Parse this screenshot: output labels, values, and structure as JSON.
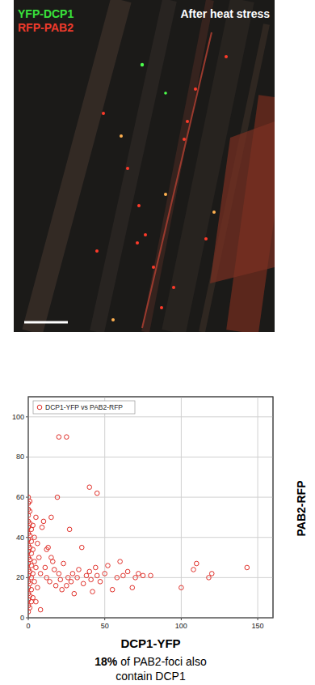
{
  "image": {
    "title": "After heat stress",
    "channels": [
      {
        "name": "YFP-DCP1",
        "color": "#39e23c"
      },
      {
        "name": "RFP-PAB2",
        "color": "#ee3b2c"
      }
    ]
  },
  "chart_data": {
    "type": "scatter",
    "x_label": "DCP1-YFP",
    "y_label": "PAB2-RFP",
    "x": [
      0,
      0,
      0,
      0,
      0,
      0,
      0,
      0,
      0,
      0,
      0,
      0,
      0,
      0,
      0,
      0,
      0,
      0,
      0,
      0,
      1,
      1,
      1,
      1,
      1,
      1,
      1,
      1,
      1,
      1,
      2,
      2,
      2,
      2,
      2,
      2,
      2,
      3,
      3,
      3,
      3,
      4,
      4,
      4,
      5,
      5,
      6,
      6,
      7,
      8,
      9,
      10,
      11,
      12,
      13,
      14,
      15,
      16,
      17,
      18,
      19,
      20,
      21,
      22,
      23,
      25,
      26,
      27,
      28,
      29,
      30,
      32,
      33,
      35,
      36,
      38,
      40,
      41,
      42,
      44,
      45,
      47,
      50,
      52,
      55,
      58,
      60,
      62,
      65,
      68,
      70,
      72,
      75,
      80,
      100,
      108,
      110,
      118,
      120,
      143,
      20,
      25,
      40,
      45,
      5,
      8,
      12,
      15
    ],
    "series": [
      {
        "name": "DCP1-YFP vs PAB2-RFP",
        "color": "#e0302a",
        "marker": "circle",
        "values": [
          3,
          6,
          9,
          12,
          15,
          18,
          21,
          24,
          27,
          30,
          33,
          36,
          39,
          42,
          45,
          48,
          51,
          54,
          57,
          60,
          5,
          11,
          17,
          23,
          29,
          35,
          41,
          47,
          53,
          58,
          8,
          14,
          20,
          26,
          32,
          38,
          44,
          10,
          22,
          34,
          46,
          18,
          28,
          40,
          25,
          50,
          15,
          37,
          30,
          22,
          45,
          48,
          25,
          20,
          35,
          18,
          50,
          28,
          24,
          16,
          60,
          22,
          19,
          14,
          27,
          16,
          20,
          44,
          18,
          22,
          12,
          20,
          24,
          35,
          17,
          21,
          23,
          19,
          13,
          25,
          21,
          18,
          22,
          26,
          14,
          20,
          28,
          21,
          23,
          15,
          20,
          22,
          21,
          21,
          15,
          24,
          27,
          20,
          22,
          25,
          90,
          90,
          65,
          62,
          8,
          4,
          34,
          30
        ]
      }
    ],
    "xlim": [
      0,
      160
    ],
    "xticks": [
      0,
      50,
      100,
      150
    ],
    "ylim": [
      0,
      110
    ],
    "yticks": [
      0,
      20,
      40,
      60,
      80,
      100
    ],
    "grid": true,
    "legend": "top-left",
    "caption": [
      "18%",
      "of PAB2-foci also",
      "contain DCP1"
    ]
  }
}
